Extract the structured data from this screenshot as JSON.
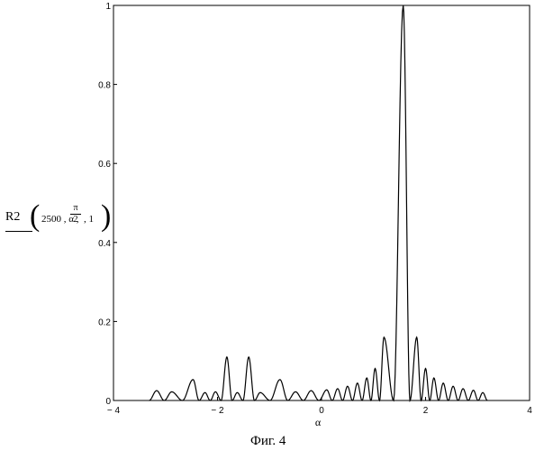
{
  "chart_data": {
    "type": "line",
    "title": "",
    "xlabel": "α",
    "ylabel": {
      "function": "R2",
      "args_before": "2500 , α ,",
      "frac_num": "π",
      "frac_den": "2",
      "args_after": ", 1"
    },
    "xlim": [
      -4,
      4
    ],
    "ylim": [
      0,
      1
    ],
    "xticks": [
      -4,
      -2,
      0,
      2,
      4
    ],
    "xtick_labels": [
      "− 4",
      "− 2",
      "0",
      "2",
      "4"
    ],
    "yticks": [
      0,
      0.2,
      0.4,
      0.6,
      0.8,
      1
    ],
    "ytick_labels": [
      "0",
      "0.2",
      "0.4",
      "0.6",
      "0.8",
      "1"
    ],
    "grid": false,
    "series": [
      {
        "peaks": [
          {
            "x": -3.17,
            "y": 0.025
          },
          {
            "x": -2.88,
            "y": 0.022
          },
          {
            "x": -2.47,
            "y": 0.053
          },
          {
            "x": -2.24,
            "y": 0.02
          },
          {
            "x": -2.04,
            "y": 0.022
          },
          {
            "x": -1.82,
            "y": 0.11
          },
          {
            "x": -1.62,
            "y": 0.02
          },
          {
            "x": -1.4,
            "y": 0.11
          },
          {
            "x": -1.18,
            "y": 0.02
          },
          {
            "x": -0.8,
            "y": 0.053
          },
          {
            "x": -0.5,
            "y": 0.022
          },
          {
            "x": -0.2,
            "y": 0.025
          },
          {
            "x": 0.1,
            "y": 0.027
          },
          {
            "x": 0.31,
            "y": 0.03
          },
          {
            "x": 0.5,
            "y": 0.036
          },
          {
            "x": 0.69,
            "y": 0.044
          },
          {
            "x": 0.87,
            "y": 0.057
          },
          {
            "x": 1.03,
            "y": 0.081
          },
          {
            "x": 1.2,
            "y": 0.16
          },
          {
            "x": 1.57,
            "y": 1.0
          },
          {
            "x": 1.83,
            "y": 0.16
          },
          {
            "x": 2.0,
            "y": 0.081
          },
          {
            "x": 2.16,
            "y": 0.057
          },
          {
            "x": 2.34,
            "y": 0.044
          },
          {
            "x": 2.53,
            "y": 0.036
          },
          {
            "x": 2.72,
            "y": 0.03
          },
          {
            "x": 2.92,
            "y": 0.026
          },
          {
            "x": 3.1,
            "y": 0.02
          }
        ]
      }
    ]
  },
  "caption": "Фиг. 4"
}
